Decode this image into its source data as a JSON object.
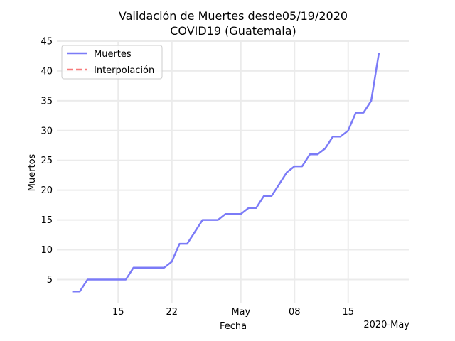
{
  "chart_data": {
    "type": "line",
    "title_line1": "Validación de Muertes desde05/19/2020",
    "title_line2": "COVID19 (Guatemala)",
    "xlabel": "Fecha",
    "ylabel": "Muertos",
    "x_offset_label": "2020-May",
    "x_range": [
      "2020-04-07",
      "2020-05-23"
    ],
    "ylim": [
      1,
      45
    ],
    "grid": true,
    "legend_position": "top-left",
    "xticks": [
      {
        "date": "2020-04-15",
        "label": "15"
      },
      {
        "date": "2020-04-22",
        "label": "22"
      },
      {
        "date": "2020-05-01",
        "label": "May"
      },
      {
        "date": "2020-05-08",
        "label": "08"
      },
      {
        "date": "2020-05-15",
        "label": "15"
      }
    ],
    "yticks": [
      5,
      10,
      15,
      20,
      25,
      30,
      35,
      40,
      45
    ],
    "series": [
      {
        "name": "Muertes",
        "color": "#7b7bf7",
        "dash": "solid",
        "x": [
          "2020-04-09",
          "2020-04-10",
          "2020-04-11",
          "2020-04-12",
          "2020-04-13",
          "2020-04-14",
          "2020-04-15",
          "2020-04-16",
          "2020-04-17",
          "2020-04-18",
          "2020-04-19",
          "2020-04-20",
          "2020-04-21",
          "2020-04-22",
          "2020-04-23",
          "2020-04-24",
          "2020-04-25",
          "2020-04-26",
          "2020-04-27",
          "2020-04-28",
          "2020-04-29",
          "2020-04-30",
          "2020-05-01",
          "2020-05-02",
          "2020-05-03",
          "2020-05-04",
          "2020-05-05",
          "2020-05-06",
          "2020-05-07",
          "2020-05-08",
          "2020-05-09",
          "2020-05-10",
          "2020-05-11",
          "2020-05-12",
          "2020-05-13",
          "2020-05-14",
          "2020-05-15",
          "2020-05-16",
          "2020-05-17",
          "2020-05-18",
          "2020-05-19"
        ],
        "y": [
          3,
          3,
          5,
          5,
          5,
          5,
          5,
          5,
          7,
          7,
          7,
          7,
          7,
          8,
          11,
          11,
          13,
          15,
          15,
          15,
          16,
          16,
          16,
          17,
          17,
          19,
          19,
          21,
          23,
          24,
          24,
          26,
          26,
          27,
          29,
          29,
          30,
          33,
          33,
          35,
          43
        ]
      },
      {
        "name": "Interpolación",
        "color": "#f77b7b",
        "dash": "dashed",
        "x": [],
        "y": []
      }
    ]
  }
}
